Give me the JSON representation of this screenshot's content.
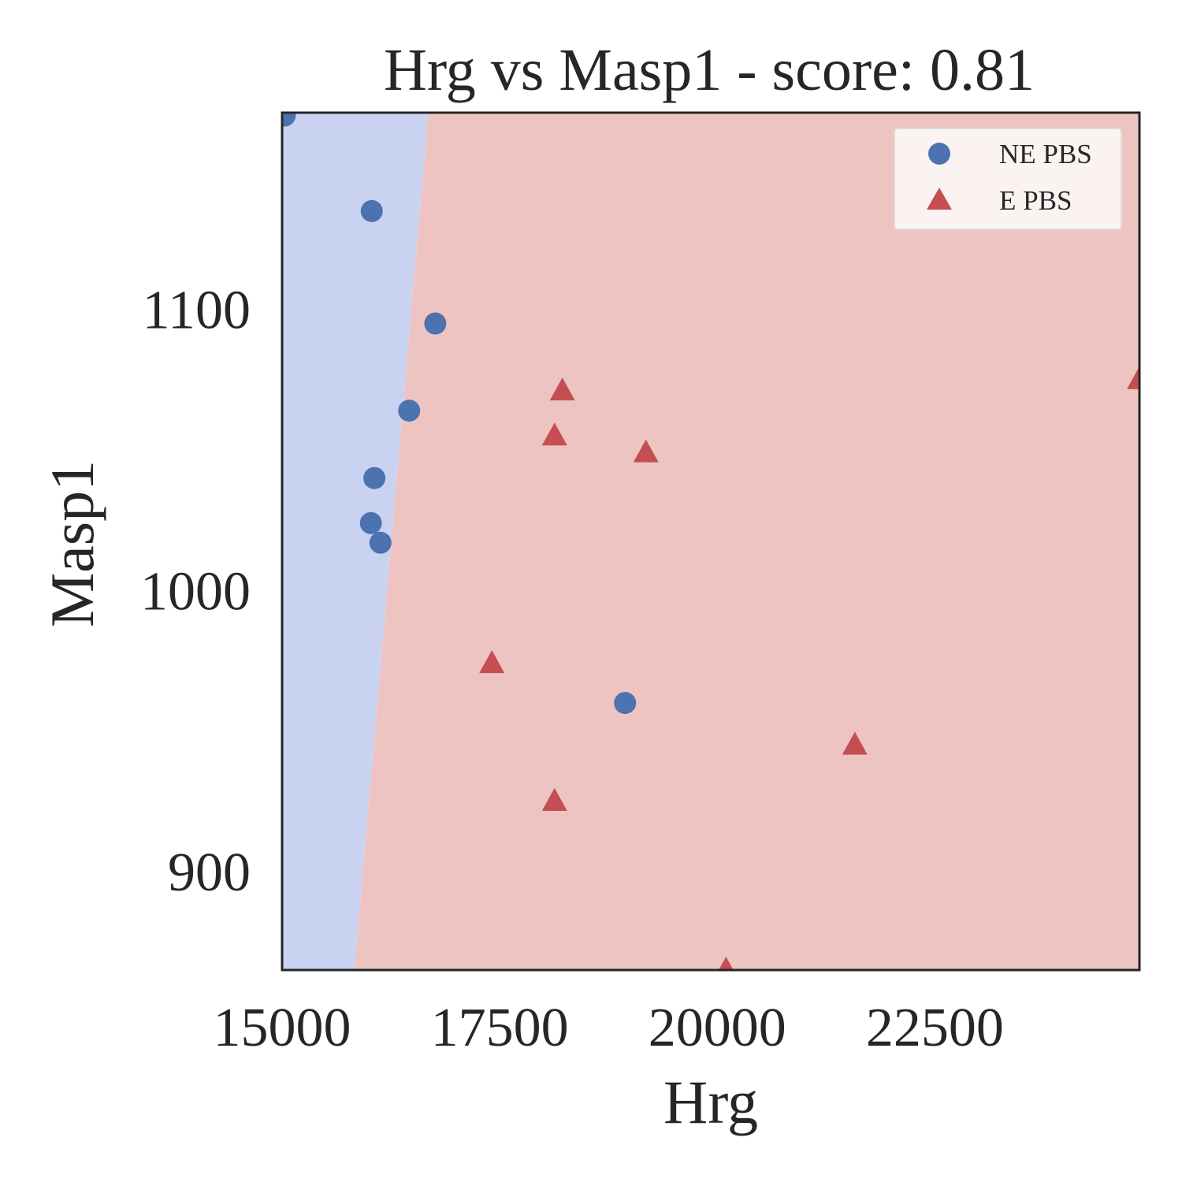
{
  "chart_data": {
    "type": "scatter",
    "title": "Hrg vs Masp1 - score: 0.81",
    "xlabel": "Hrg",
    "ylabel": "Masp1",
    "xlim": [
      15000,
      24850
    ],
    "ylim": [
      865,
      1170
    ],
    "xticks": [
      15000,
      17500,
      20000,
      22500
    ],
    "yticks": [
      900,
      1000,
      1100
    ],
    "grid": false,
    "legend_position": "top-right",
    "decision_regions": {
      "left_class": "NE PBS",
      "right_class": "E PBS",
      "boundary": [
        {
          "x": 16680,
          "y": 1170
        },
        {
          "x": 15830,
          "y": 865
        }
      ],
      "left_color": "#c9d2f1",
      "right_color": "#eec4c3"
    },
    "series": [
      {
        "name": "NE PBS",
        "marker": "circle",
        "color": "#4c72b0",
        "points": [
          {
            "x": 15030,
            "y": 1169
          },
          {
            "x": 16030,
            "y": 1135
          },
          {
            "x": 16760,
            "y": 1095
          },
          {
            "x": 16460,
            "y": 1064
          },
          {
            "x": 16060,
            "y": 1040
          },
          {
            "x": 16020,
            "y": 1024
          },
          {
            "x": 16130,
            "y": 1017
          },
          {
            "x": 18940,
            "y": 960
          }
        ]
      },
      {
        "name": "E PBS",
        "marker": "triangle",
        "color": "#c44e52",
        "points": [
          {
            "x": 18220,
            "y": 1071
          },
          {
            "x": 18130,
            "y": 1055
          },
          {
            "x": 19180,
            "y": 1049
          },
          {
            "x": 17410,
            "y": 974
          },
          {
            "x": 18130,
            "y": 925
          },
          {
            "x": 21580,
            "y": 945
          },
          {
            "x": 20100,
            "y": 865
          },
          {
            "x": 24850,
            "y": 1075
          }
        ]
      }
    ]
  }
}
